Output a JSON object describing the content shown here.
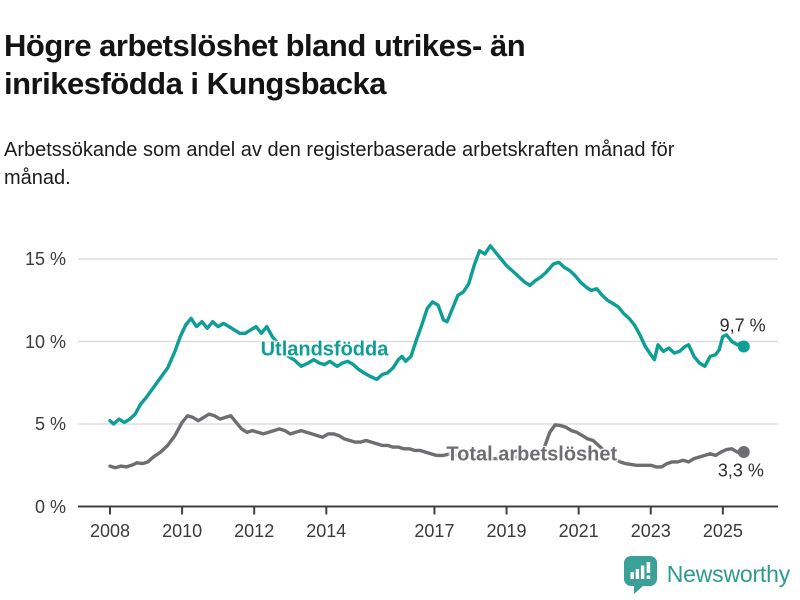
{
  "footer": {
    "brand": "Newsworthy"
  },
  "colors": {
    "accent_teal": "#0d9e95",
    "line_gray": "#6d6d72",
    "grid": "#d8d8d8",
    "axis": "#404040",
    "brand_teal": "#3ba197"
  },
  "chart_data": {
    "type": "line",
    "title": "Högre arbetslöshet bland utrikes- än inrikesfödda i Kungsbacka",
    "subtitle": "Arbetssökande som andel av den registerbaserade arbetskraften månad för månad.",
    "xlabel": "",
    "ylabel": "",
    "grid": "horizontal",
    "legend_position": "inline-labels",
    "x_axis": {
      "range": [
        2007.1,
        2026.5
      ],
      "ticks": [
        {
          "value": 2008,
          "label": "2008"
        },
        {
          "value": 2010,
          "label": "2010"
        },
        {
          "value": 2012,
          "label": "2012"
        },
        {
          "value": 2014,
          "label": "2014"
        },
        {
          "value": 2017,
          "label": "2017"
        },
        {
          "value": 2019,
          "label": "2019"
        },
        {
          "value": 2021,
          "label": "2021"
        },
        {
          "value": 2023,
          "label": "2023"
        },
        {
          "value": 2025,
          "label": "2025"
        }
      ]
    },
    "y_axis": {
      "range": [
        0,
        16.9
      ],
      "ticks": [
        {
          "value": 0,
          "label": "0 %"
        },
        {
          "value": 5,
          "label": "5 %"
        },
        {
          "value": 10,
          "label": "10 %"
        },
        {
          "value": 15,
          "label": "15 %"
        }
      ]
    },
    "series": [
      {
        "name": "Utlandsfödda",
        "color": "#0d9e95",
        "end_label": "9,7 %",
        "end_value": 9.7,
        "label_pos": [
          2013.95,
          9.5
        ],
        "end_label_pos": [
          2025.55,
          10.95
        ],
        "points": [
          [
            2008.0,
            5.2
          ],
          [
            2008.1,
            5.0
          ],
          [
            2008.25,
            5.3
          ],
          [
            2008.4,
            5.1
          ],
          [
            2008.55,
            5.3
          ],
          [
            2008.7,
            5.6
          ],
          [
            2008.85,
            6.2
          ],
          [
            2009.0,
            6.6
          ],
          [
            2009.2,
            7.2
          ],
          [
            2009.4,
            7.8
          ],
          [
            2009.6,
            8.4
          ],
          [
            2009.8,
            9.4
          ],
          [
            2009.95,
            10.3
          ],
          [
            2010.1,
            11.0
          ],
          [
            2010.25,
            11.4
          ],
          [
            2010.4,
            10.9
          ],
          [
            2010.55,
            11.2
          ],
          [
            2010.7,
            10.8
          ],
          [
            2010.85,
            11.2
          ],
          [
            2011.0,
            10.9
          ],
          [
            2011.15,
            11.1
          ],
          [
            2011.3,
            10.9
          ],
          [
            2011.45,
            10.7
          ],
          [
            2011.6,
            10.5
          ],
          [
            2011.75,
            10.5
          ],
          [
            2011.9,
            10.7
          ],
          [
            2012.05,
            10.9
          ],
          [
            2012.2,
            10.5
          ],
          [
            2012.35,
            10.9
          ],
          [
            2012.5,
            10.3
          ],
          [
            2012.65,
            9.9
          ],
          [
            2012.8,
            9.5
          ],
          [
            2012.95,
            9.1
          ],
          [
            2013.1,
            8.9
          ],
          [
            2013.3,
            8.5
          ],
          [
            2013.5,
            8.7
          ],
          [
            2013.65,
            8.9
          ],
          [
            2013.8,
            8.7
          ],
          [
            2013.95,
            8.6
          ],
          [
            2014.1,
            8.8
          ],
          [
            2014.3,
            8.5
          ],
          [
            2014.45,
            8.7
          ],
          [
            2014.6,
            8.8
          ],
          [
            2014.75,
            8.6
          ],
          [
            2014.9,
            8.3
          ],
          [
            2015.05,
            8.1
          ],
          [
            2015.2,
            7.9
          ],
          [
            2015.4,
            7.7
          ],
          [
            2015.55,
            8.0
          ],
          [
            2015.7,
            8.1
          ],
          [
            2015.85,
            8.4
          ],
          [
            2016.0,
            8.9
          ],
          [
            2016.1,
            9.1
          ],
          [
            2016.2,
            8.8
          ],
          [
            2016.35,
            9.1
          ],
          [
            2016.5,
            10.1
          ],
          [
            2016.65,
            11.0
          ],
          [
            2016.8,
            12.0
          ],
          [
            2016.95,
            12.4
          ],
          [
            2017.1,
            12.2
          ],
          [
            2017.25,
            11.3
          ],
          [
            2017.35,
            11.2
          ],
          [
            2017.5,
            12.0
          ],
          [
            2017.65,
            12.8
          ],
          [
            2017.8,
            13.0
          ],
          [
            2017.95,
            13.5
          ],
          [
            2018.1,
            14.6
          ],
          [
            2018.25,
            15.5
          ],
          [
            2018.4,
            15.3
          ],
          [
            2018.55,
            15.8
          ],
          [
            2018.7,
            15.4
          ],
          [
            2018.85,
            15.0
          ],
          [
            2019.0,
            14.6
          ],
          [
            2019.15,
            14.3
          ],
          [
            2019.3,
            14.0
          ],
          [
            2019.5,
            13.6
          ],
          [
            2019.65,
            13.4
          ],
          [
            2019.8,
            13.7
          ],
          [
            2019.95,
            13.9
          ],
          [
            2020.1,
            14.2
          ],
          [
            2020.3,
            14.7
          ],
          [
            2020.45,
            14.8
          ],
          [
            2020.6,
            14.5
          ],
          [
            2020.75,
            14.3
          ],
          [
            2020.9,
            14.0
          ],
          [
            2021.05,
            13.6
          ],
          [
            2021.2,
            13.3
          ],
          [
            2021.35,
            13.1
          ],
          [
            2021.5,
            13.2
          ],
          [
            2021.65,
            12.8
          ],
          [
            2021.8,
            12.5
          ],
          [
            2021.95,
            12.3
          ],
          [
            2022.1,
            12.1
          ],
          [
            2022.25,
            11.7
          ],
          [
            2022.4,
            11.4
          ],
          [
            2022.55,
            11.0
          ],
          [
            2022.7,
            10.4
          ],
          [
            2022.85,
            9.7
          ],
          [
            2023.0,
            9.2
          ],
          [
            2023.1,
            8.9
          ],
          [
            2023.2,
            9.8
          ],
          [
            2023.35,
            9.4
          ],
          [
            2023.5,
            9.6
          ],
          [
            2023.65,
            9.3
          ],
          [
            2023.8,
            9.4
          ],
          [
            2023.95,
            9.7
          ],
          [
            2024.05,
            9.8
          ],
          [
            2024.2,
            9.1
          ],
          [
            2024.35,
            8.7
          ],
          [
            2024.5,
            8.5
          ],
          [
            2024.65,
            9.1
          ],
          [
            2024.8,
            9.2
          ],
          [
            2024.9,
            9.5
          ],
          [
            2025.0,
            10.3
          ],
          [
            2025.1,
            10.4
          ],
          [
            2025.25,
            10.0
          ],
          [
            2025.4,
            9.8
          ],
          [
            2025.5,
            9.9
          ],
          [
            2025.58,
            9.7
          ]
        ]
      },
      {
        "name": "Total arbetslöshet",
        "color": "#6d6d72",
        "end_label": "3,3 %",
        "end_value": 3.3,
        "label_pos": [
          2019.7,
          3.1
        ],
        "end_label_pos": [
          2025.5,
          2.15
        ],
        "points": [
          [
            2008.0,
            2.45
          ],
          [
            2008.15,
            2.35
          ],
          [
            2008.3,
            2.45
          ],
          [
            2008.45,
            2.4
          ],
          [
            2008.6,
            2.5
          ],
          [
            2008.75,
            2.65
          ],
          [
            2008.9,
            2.6
          ],
          [
            2009.05,
            2.7
          ],
          [
            2009.2,
            3.0
          ],
          [
            2009.4,
            3.3
          ],
          [
            2009.6,
            3.7
          ],
          [
            2009.8,
            4.3
          ],
          [
            2010.0,
            5.1
          ],
          [
            2010.15,
            5.5
          ],
          [
            2010.3,
            5.4
          ],
          [
            2010.45,
            5.2
          ],
          [
            2010.6,
            5.4
          ],
          [
            2010.75,
            5.6
          ],
          [
            2010.9,
            5.5
          ],
          [
            2011.05,
            5.3
          ],
          [
            2011.2,
            5.4
          ],
          [
            2011.35,
            5.5
          ],
          [
            2011.5,
            5.1
          ],
          [
            2011.65,
            4.7
          ],
          [
            2011.8,
            4.5
          ],
          [
            2011.95,
            4.6
          ],
          [
            2012.1,
            4.5
          ],
          [
            2012.25,
            4.4
          ],
          [
            2012.4,
            4.5
          ],
          [
            2012.55,
            4.6
          ],
          [
            2012.7,
            4.7
          ],
          [
            2012.85,
            4.6
          ],
          [
            2013.0,
            4.4
          ],
          [
            2013.15,
            4.5
          ],
          [
            2013.3,
            4.6
          ],
          [
            2013.45,
            4.5
          ],
          [
            2013.6,
            4.4
          ],
          [
            2013.75,
            4.3
          ],
          [
            2013.9,
            4.2
          ],
          [
            2014.05,
            4.4
          ],
          [
            2014.2,
            4.4
          ],
          [
            2014.35,
            4.3
          ],
          [
            2014.5,
            4.1
          ],
          [
            2014.65,
            4.0
          ],
          [
            2014.8,
            3.9
          ],
          [
            2014.95,
            3.9
          ],
          [
            2015.1,
            4.0
          ],
          [
            2015.25,
            3.9
          ],
          [
            2015.4,
            3.8
          ],
          [
            2015.55,
            3.7
          ],
          [
            2015.7,
            3.7
          ],
          [
            2015.85,
            3.6
          ],
          [
            2016.0,
            3.6
          ],
          [
            2016.15,
            3.5
          ],
          [
            2016.3,
            3.5
          ],
          [
            2016.45,
            3.4
          ],
          [
            2016.6,
            3.4
          ],
          [
            2016.75,
            3.3
          ],
          [
            2016.9,
            3.2
          ],
          [
            2017.05,
            3.1
          ],
          [
            2017.25,
            3.1
          ],
          [
            2017.45,
            3.2
          ],
          [
            2017.65,
            3.1
          ],
          [
            2017.85,
            3.0
          ],
          [
            2018.05,
            3.0
          ],
          [
            2018.25,
            2.9
          ],
          [
            2018.45,
            2.9
          ],
          [
            2018.65,
            2.9
          ],
          [
            2018.85,
            2.9
          ],
          [
            2019.05,
            2.9
          ],
          [
            2019.25,
            3.0
          ],
          [
            2019.45,
            3.0
          ],
          [
            2019.65,
            3.1
          ],
          [
            2019.85,
            3.2
          ],
          [
            2020.05,
            3.6
          ],
          [
            2020.2,
            4.5
          ],
          [
            2020.35,
            4.95
          ],
          [
            2020.5,
            4.9
          ],
          [
            2020.65,
            4.8
          ],
          [
            2020.8,
            4.6
          ],
          [
            2020.95,
            4.5
          ],
          [
            2021.1,
            4.3
          ],
          [
            2021.25,
            4.1
          ],
          [
            2021.4,
            4.0
          ],
          [
            2021.55,
            3.7
          ],
          [
            2021.7,
            3.4
          ],
          [
            2021.85,
            3.1
          ],
          [
            2022.0,
            2.9
          ],
          [
            2022.15,
            2.7
          ],
          [
            2022.3,
            2.6
          ],
          [
            2022.45,
            2.55
          ],
          [
            2022.6,
            2.5
          ],
          [
            2022.8,
            2.5
          ],
          [
            2023.0,
            2.5
          ],
          [
            2023.15,
            2.4
          ],
          [
            2023.3,
            2.4
          ],
          [
            2023.45,
            2.6
          ],
          [
            2023.6,
            2.7
          ],
          [
            2023.75,
            2.7
          ],
          [
            2023.9,
            2.8
          ],
          [
            2024.05,
            2.7
          ],
          [
            2024.2,
            2.9
          ],
          [
            2024.35,
            3.0
          ],
          [
            2024.5,
            3.1
          ],
          [
            2024.65,
            3.2
          ],
          [
            2024.8,
            3.1
          ],
          [
            2024.95,
            3.3
          ],
          [
            2025.1,
            3.45
          ],
          [
            2025.25,
            3.5
          ],
          [
            2025.4,
            3.3
          ],
          [
            2025.58,
            3.3
          ]
        ]
      }
    ]
  }
}
